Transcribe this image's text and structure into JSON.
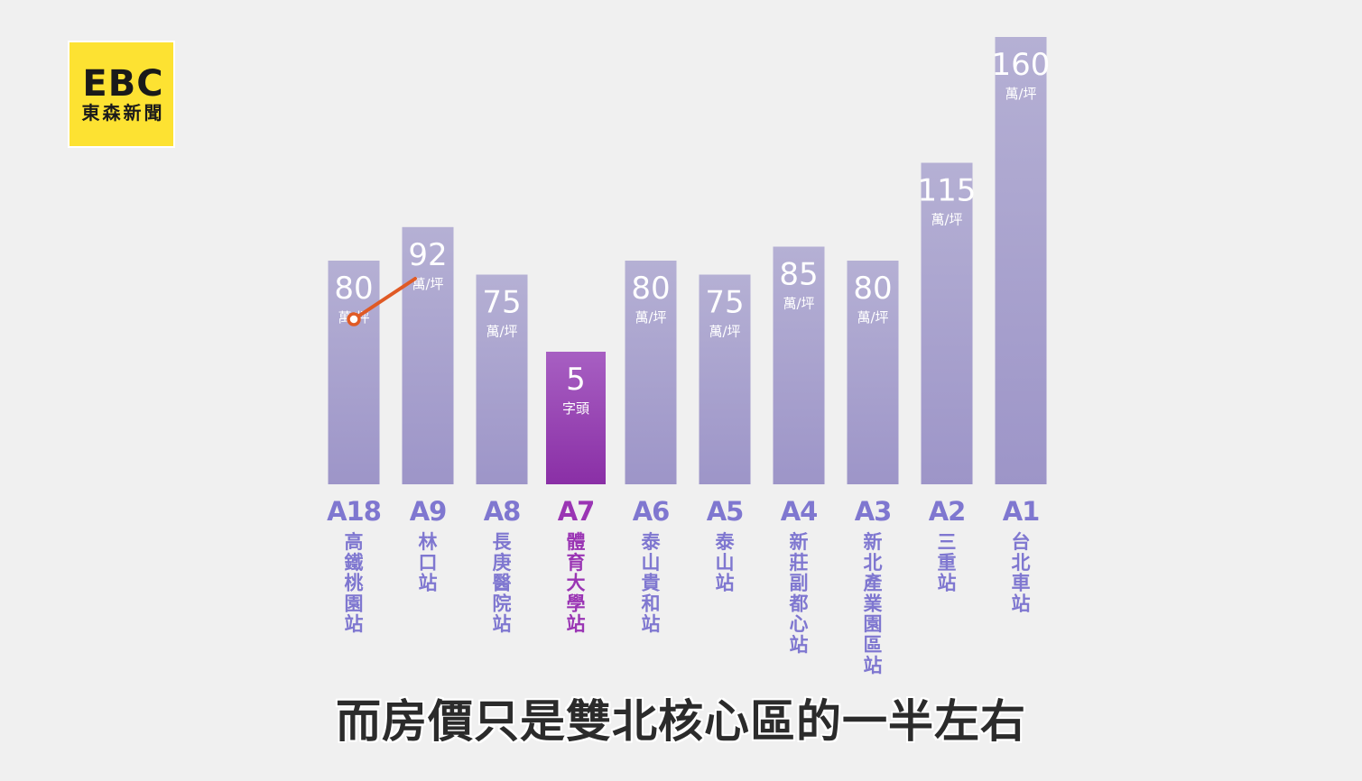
{
  "logo": {
    "mark": "EBC",
    "text": "東森新聞"
  },
  "subtitle": "而房價只是雙北核心區的一半左右",
  "chart_data": {
    "type": "bar",
    "categories": [
      "A18",
      "A9",
      "A8",
      "A7",
      "A6",
      "A5",
      "A4",
      "A3",
      "A2",
      "A1"
    ],
    "station_names": [
      "高鐵桃園站",
      "林口站",
      "長庚醫院站",
      "體育大學站",
      "泰山貴和站",
      "泰山站",
      "新莊副都心站",
      "新北產業園區站",
      "三重站",
      "台北車站"
    ],
    "values": [
      80,
      92,
      75,
      null,
      80,
      75,
      85,
      80,
      115,
      160
    ],
    "value_labels": [
      "80",
      "92",
      "75",
      "5",
      "80",
      "75",
      "85",
      "80",
      "115",
      "160"
    ],
    "unit_labels": [
      "萬/坪",
      "萬/坪",
      "萬/坪",
      "字頭",
      "萬/坪",
      "萬/坪",
      "萬/坪",
      "萬/坪",
      "萬/坪",
      "萬/坪"
    ],
    "highlight_index": 3,
    "colors": {
      "bar_top": "#b5b0d4",
      "bar_bottom": "#9d95c8",
      "highlight_top": "#a75fc2",
      "highlight_bottom": "#8a2fa6",
      "code": "#7f77d0",
      "highlight_code": "#9a35b4",
      "pointer": "#e05a25"
    }
  }
}
